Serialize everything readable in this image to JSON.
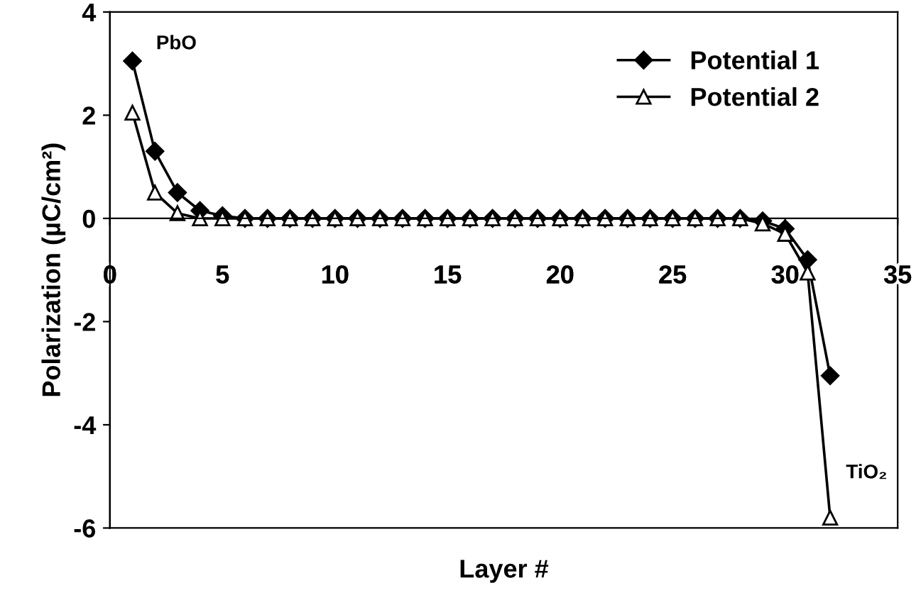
{
  "chart_data": {
    "type": "line",
    "xlabel": "Layer #",
    "ylabel": "Polarization (µC/cm²)",
    "xlim": [
      0,
      35
    ],
    "xticks": [
      0,
      5,
      10,
      15,
      20,
      25,
      30,
      35
    ],
    "ylim": [
      -6,
      4
    ],
    "yticks": [
      -6,
      -4,
      -2,
      0,
      2,
      4
    ],
    "x": [
      1,
      2,
      3,
      4,
      5,
      6,
      7,
      8,
      9,
      10,
      11,
      12,
      13,
      14,
      15,
      16,
      17,
      18,
      19,
      20,
      21,
      22,
      23,
      24,
      25,
      26,
      27,
      28,
      29,
      30,
      31,
      32
    ],
    "series": [
      {
        "name": "Potential 1",
        "color": "#000000",
        "marker": "diamond",
        "values": [
          3.05,
          1.3,
          0.5,
          0.15,
          0.05,
          0,
          0,
          0,
          0,
          0,
          0,
          0,
          0,
          0,
          0,
          0,
          0,
          0,
          0,
          0,
          0,
          0,
          0,
          0,
          0,
          0,
          0,
          0,
          -0.05,
          -0.2,
          -0.8,
          -3.05
        ]
      },
      {
        "name": "Potential 2",
        "color": "#000000",
        "marker": "triangle",
        "values": [
          2.05,
          0.5,
          0.1,
          0,
          0,
          0,
          0,
          0,
          0,
          0,
          0,
          0,
          0,
          0,
          0,
          0,
          0,
          0,
          0,
          0,
          0,
          0,
          0,
          0,
          0,
          0,
          0,
          0,
          -0.1,
          -0.3,
          -1.05,
          -5.8
        ]
      }
    ],
    "annotations": [
      {
        "text": "PbO",
        "x": 1,
        "y": 3.05
      },
      {
        "text": "TiO₂",
        "x": 32,
        "y": -5.8
      }
    ],
    "legend": "top right",
    "grid": false,
    "line_style": "solid"
  }
}
